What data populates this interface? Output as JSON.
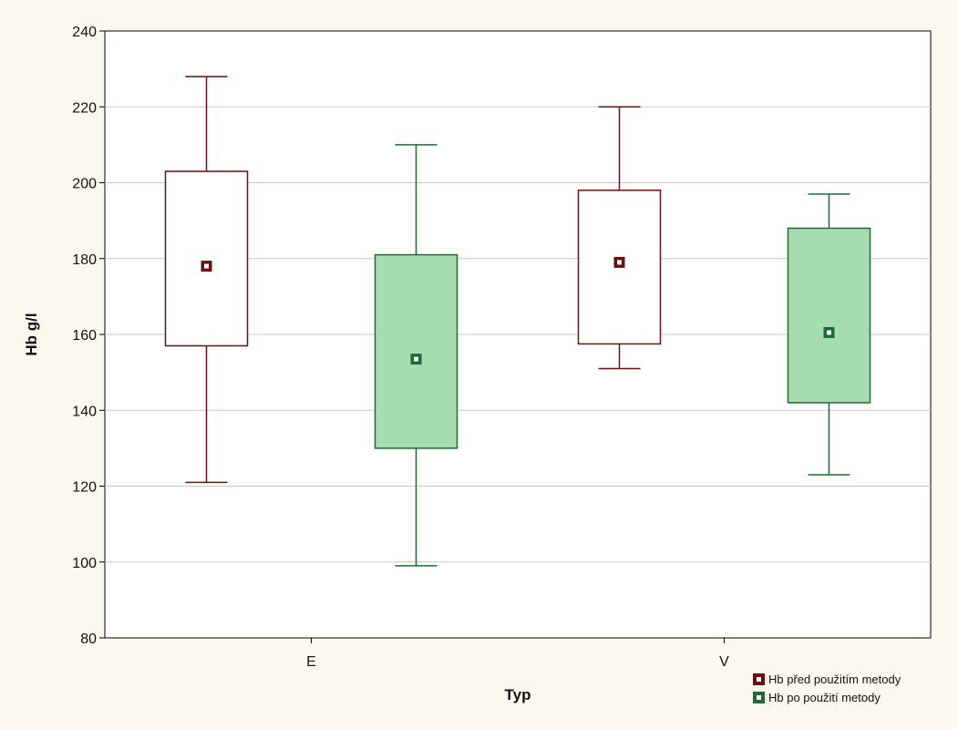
{
  "chart_data": {
    "type": "boxplot",
    "title": "",
    "xlabel": "Typ",
    "ylabel": "Hb g/l",
    "categories": [
      "E",
      "V"
    ],
    "ylim": [
      80,
      240
    ],
    "yticks": [
      80,
      100,
      120,
      140,
      160,
      180,
      200,
      220,
      240
    ],
    "grid": true,
    "legend_position": "bottom-right",
    "series": [
      {
        "name": "Hb před použitím metody",
        "color": "#6b0f14",
        "box_fill": "#ffffff",
        "boxes": [
          {
            "category": "E",
            "min": 121,
            "q1": 157,
            "median": 178,
            "q3": 203,
            "max": 228
          },
          {
            "category": "V",
            "min": 151,
            "q1": 157.5,
            "median": 179,
            "q3": 198,
            "max": 220
          }
        ]
      },
      {
        "name": "Hb po použití metody",
        "color": "#1d6b32",
        "box_fill": "#a6dcb0",
        "boxes": [
          {
            "category": "E",
            "min": 99,
            "q1": 130,
            "median": 153.5,
            "q3": 181,
            "max": 210
          },
          {
            "category": "V",
            "min": 123,
            "q1": 142,
            "median": 160.5,
            "q3": 188,
            "max": 197
          }
        ]
      }
    ]
  }
}
